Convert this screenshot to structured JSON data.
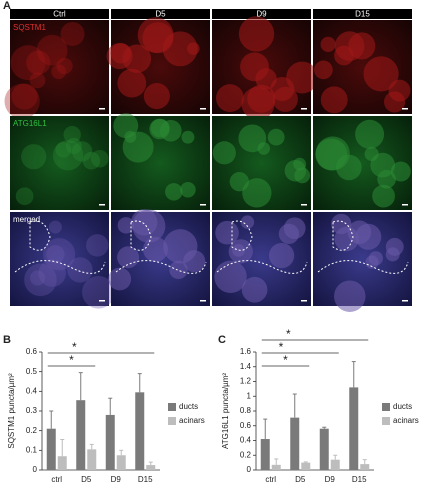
{
  "panel_labels": [
    "A",
    "B",
    "C"
  ],
  "panel_a": {
    "columns": [
      "Ctrl",
      "D5",
      "D9",
      "D15"
    ],
    "rows": [
      "SQSTM1",
      "ATG16L1",
      "merged"
    ]
  },
  "chart_data": [
    {
      "type": "bar",
      "y_label": "SQSTM1 puncta/µm²",
      "categories": [
        "ctrl",
        "D5",
        "D9",
        "D15"
      ],
      "series": [
        {
          "name": "ducts",
          "color": "#7a7a7a",
          "values": [
            0.21,
            0.355,
            0.28,
            0.395
          ],
          "errors": [
            0.09,
            0.14,
            0.085,
            0.095
          ]
        },
        {
          "name": "acinars",
          "color": "#bdbdbd",
          "values": [
            0.07,
            0.105,
            0.075,
            0.025
          ],
          "errors": [
            0.085,
            0.025,
            0.025,
            0.015
          ]
        }
      ],
      "ylim": [
        0,
        0.6
      ],
      "yticks": [
        0,
        0.1,
        0.2,
        0.3,
        0.4,
        0.5,
        0.6
      ],
      "significance": [
        {
          "categories": [
            "ctrl",
            "D5"
          ],
          "label": "*"
        },
        {
          "categories": [
            "ctrl",
            "D15"
          ],
          "label": "*"
        }
      ]
    },
    {
      "type": "bar",
      "y_label": "ATG16L1 puncta/µm²",
      "categories": [
        "ctrl",
        "D5",
        "D9",
        "D15"
      ],
      "series": [
        {
          "name": "ducts",
          "color": "#7a7a7a",
          "values": [
            0.42,
            0.71,
            0.56,
            1.12
          ],
          "errors": [
            0.27,
            0.32,
            0.02,
            0.35
          ]
        },
        {
          "name": "acinars",
          "color": "#bdbdbd",
          "values": [
            0.07,
            0.1,
            0.14,
            0.08
          ],
          "errors": [
            0.08,
            0.01,
            0.06,
            0.06
          ]
        }
      ],
      "ylim": [
        0,
        1.6
      ],
      "yticks": [
        0,
        0.2,
        0.4,
        0.6,
        0.8,
        1,
        1.2,
        1.4,
        1.6
      ],
      "significance": [
        {
          "categories": [
            "ctrl",
            "D5"
          ],
          "label": "*"
        },
        {
          "categories": [
            "ctrl",
            "D9"
          ],
          "label": "*"
        },
        {
          "categories": [
            "ctrl",
            "D15"
          ],
          "label": "*"
        }
      ]
    }
  ]
}
